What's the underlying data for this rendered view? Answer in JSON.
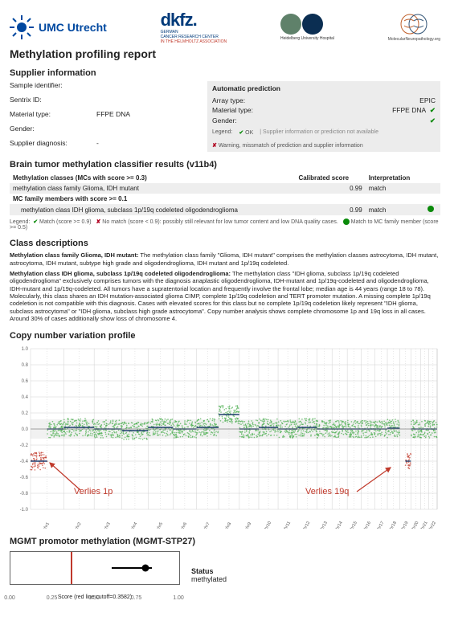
{
  "logos": {
    "umc": "UMC Utrecht",
    "dkfz_big": "dkfz.",
    "dkfz_l1": "GERMAN",
    "dkfz_l2": "CANCER RESEARCH CENTER",
    "dkfz_l3": "IN THE HELMHOLTZ ASSOCIATION",
    "heidelberg": "Heidelberg University Hospital",
    "mnp": "MolecularNeuropathology.org"
  },
  "report_title": "Methylation profiling report",
  "supplier": {
    "title": "Supplier information",
    "rows": {
      "sample_id_label": "Sample identifier:",
      "sentrix_label": "Sentrix ID:",
      "material_label": "Material type:",
      "material_value": "FFPE DNA",
      "gender_label": "Gender:",
      "diagnosis_label": "Supplier diagnosis:",
      "diagnosis_value": "-"
    }
  },
  "prediction": {
    "title": "Automatic prediction",
    "array_label": "Array type:",
    "array_value": "EPIC",
    "material_label": "Material type:",
    "material_value": "FFPE DNA",
    "gender_label": "Gender:",
    "legend_label": "Legend:",
    "legend_ok": "OK",
    "legend_na": "Supplier information or prediction not available",
    "legend_warn": "Warning, missmatch of prediction and supplier information"
  },
  "classifier": {
    "title": "Brain tumor methylation classifier results (v11b4)",
    "col1": "Methylation classes (MCs with score >= 0.3)",
    "col2": "Calibrated score",
    "col3": "Interpretation",
    "row1": {
      "name": "methylation class family Glioma, IDH mutant",
      "score": "0.99",
      "interp": "match"
    },
    "sub_header": "MC family members with score >= 0.1",
    "row2": {
      "name": "methylation class IDH glioma, subclass 1p/19q codeleted oligodendroglioma",
      "score": "0.99",
      "interp": "match"
    },
    "legend_match": "Match (score >= 0.9)",
    "legend_nomatch": "No match (score < 0.9): possibly still relevant for low tumor content and low DNA quality cases.",
    "legend_family": "Match to MC family member (score >= 0.5)"
  },
  "class_desc": {
    "title": "Class descriptions",
    "p1_title": "Methylation class family Glioma, IDH mutant:",
    "p1_body": "The methylation class family \"Glioma, IDH mutant\" comprises the methylation classes astrocytoma, IDH mutant, astrocytoma, IDH mutant, subtype high grade and oligodendroglioma, IDH mutant and 1p/19q codeleted.",
    "p2_title": "Methylation class IDH glioma, subclass 1p/19q codeleted oligodendroglioma:",
    "p2_body": "The methylation class \"IDH glioma, subclass 1p/19q codeleted oligodendroglioma\" exclusively comprises tumors with the diagnosis anaplastic oligodendroglioma, IDH-mutant and 1p/19q-codeleted and oligodendroglioma, IDH-mutant and 1p/19q-codeleted. All tumors have a supratentorial location and frequently involve the frontal lobe; median age is 44 years (range 18 to 78). Molecularly, this class shares an IDH mutation-associated glioma CIMP, complete 1p/19q codeletion and TERT promoter mutation. A missing complete 1p/19q codeletion is not compatible with this diagnosis. Cases with elevated scores for this class but no complete 1p/19q codeletion likely represent \"IDH glioma, subclass astrocytoma\" or \"IDH glioma, subclass high grade astrocytoma\". Copy number analysis shows complete chromosome 1p and 19q loss in all cases. Around 30% of cases additionally show loss of chromosome 4."
  },
  "cnv": {
    "title": "Copy number variation profile",
    "ylim": [
      -1,
      1
    ],
    "yticks": [
      1.0,
      0.8,
      0.6,
      0.4,
      0.2,
      0.0,
      -0.2,
      -0.4,
      -0.6,
      -0.8,
      -1.0
    ],
    "chromosomes": [
      "chr1",
      "chr2",
      "chr3",
      "chr4",
      "chr5",
      "chr6",
      "chr7",
      "chr8",
      "chr9",
      "chr10",
      "chr11",
      "chr12",
      "chr13",
      "chr14",
      "chr15",
      "chr16",
      "chr17",
      "chr18",
      "chr19",
      "chr20",
      "chr21",
      "chr22"
    ],
    "chr_widths": [
      48,
      44,
      40,
      38,
      36,
      34,
      32,
      30,
      28,
      28,
      28,
      28,
      22,
      22,
      20,
      20,
      18,
      18,
      16,
      14,
      12,
      12
    ],
    "baseline": 0.0,
    "loss_color": "#c0392b",
    "gain_color": "#4caf50",
    "neutral_color": "#8aa",
    "grid_color": "#d0d0d0",
    "band_color": "#e8e8e8",
    "annotations": {
      "loss1p_label": "Verlies 1p",
      "loss19q_label": "Verlies 19q"
    },
    "segments": [
      {
        "chr": 0,
        "arm": "p",
        "level": -0.4,
        "color": "#c0392b"
      },
      {
        "chr": 0,
        "arm": "q",
        "level": 0.0,
        "color": "#4caf50"
      },
      {
        "chr": 1,
        "arm": "pq",
        "level": 0.02,
        "color": "#4caf50"
      },
      {
        "chr": 2,
        "arm": "pq",
        "level": 0.0,
        "color": "#4caf50"
      },
      {
        "chr": 3,
        "arm": "pq",
        "level": -0.02,
        "color": "#4caf50"
      },
      {
        "chr": 4,
        "arm": "pq",
        "level": 0.02,
        "color": "#4caf50"
      },
      {
        "chr": 5,
        "arm": "pq",
        "level": 0.0,
        "color": "#4caf50"
      },
      {
        "chr": 6,
        "arm": "pq",
        "level": 0.02,
        "color": "#4caf50"
      },
      {
        "chr": 7,
        "arm": "pq",
        "level": 0.18,
        "color": "#4caf50"
      },
      {
        "chr": 8,
        "arm": "pq",
        "level": 0.0,
        "color": "#4caf50"
      },
      {
        "chr": 9,
        "arm": "pq",
        "level": 0.02,
        "color": "#4caf50"
      },
      {
        "chr": 10,
        "arm": "pq",
        "level": 0.0,
        "color": "#4caf50"
      },
      {
        "chr": 11,
        "arm": "pq",
        "level": 0.02,
        "color": "#4caf50"
      },
      {
        "chr": 12,
        "arm": "pq",
        "level": 0.0,
        "color": "#4caf50"
      },
      {
        "chr": 13,
        "arm": "pq",
        "level": 0.0,
        "color": "#4caf50"
      },
      {
        "chr": 14,
        "arm": "pq",
        "level": 0.0,
        "color": "#4caf50"
      },
      {
        "chr": 15,
        "arm": "pq",
        "level": 0.0,
        "color": "#4caf50"
      },
      {
        "chr": 16,
        "arm": "pq",
        "level": 0.0,
        "color": "#4caf50"
      },
      {
        "chr": 17,
        "arm": "pq",
        "level": 0.01,
        "color": "#4caf50"
      },
      {
        "chr": 18,
        "arm": "q",
        "level": -0.4,
        "color": "#c0392b"
      },
      {
        "chr": 19,
        "arm": "pq",
        "level": 0.0,
        "color": "#4caf50"
      },
      {
        "chr": 20,
        "arm": "pq",
        "level": 0.0,
        "color": "#4caf50"
      },
      {
        "chr": 21,
        "arm": "pq",
        "level": 0.0,
        "color": "#4caf50"
      }
    ]
  },
  "mgmt": {
    "title": "MGMT promotor methylation (MGMT-STP27)",
    "status_label": "Status",
    "status_value": "methylated",
    "cutoff": 0.3582,
    "score": 0.8,
    "xticks": [
      "0.00",
      "0.25",
      "0.50",
      "0.75",
      "1.00"
    ],
    "caption": "Score (red line cutoff=0.3582)"
  },
  "colors": {
    "brand_blue": "#0048a0",
    "ok_green": "#0a8a0a",
    "warn_red": "#b00020",
    "annot_red": "#c0392b"
  }
}
